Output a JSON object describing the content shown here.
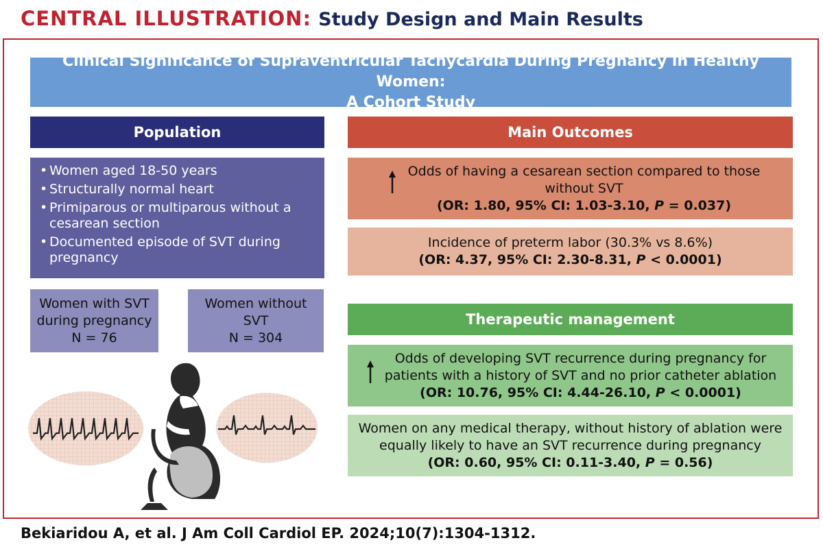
{
  "header": {
    "label": "CENTRAL ILLUSTRATION:",
    "title": "Study Design and Main Results"
  },
  "main_title": {
    "line1": "Clinical Significance of Supraventricular Tachycardia During Pregnancy in Healthy Women:",
    "line2": "A Cohort Study"
  },
  "population": {
    "header": "Population",
    "items": [
      "Women aged 18-50 years",
      "Structurally normal heart",
      "Primiparous or multiparous without a cesarean section",
      "Documented episode of SVT during pregnancy"
    ],
    "groups": [
      {
        "line1": "Women with SVT",
        "line2": "during pregnancy",
        "n": "N = 76"
      },
      {
        "line1": "Women without",
        "line2": "SVT",
        "n": "N = 304"
      }
    ]
  },
  "main_outcomes": {
    "header": "Main Outcomes",
    "box1": {
      "line1": "Odds of having a cesarean section compared to those",
      "line2": "without SVT",
      "stat_pre": "(OR: 1.80, 95% CI: 1.03-3.10, ",
      "stat_p": "P",
      "stat_post": " = 0.037)"
    },
    "box2": {
      "line1": "Incidence of preterm labor (30.3% vs 8.6%)",
      "stat_pre": "(OR: 4.37, 95% CI: 2.30-8.31, ",
      "stat_p": "P",
      "stat_post": " < 0.0001)"
    }
  },
  "therapeutic": {
    "header": "Therapeutic management",
    "box1": {
      "line1": "Odds of developing SVT recurrence during pregnancy for",
      "line2": "patients with a history of SVT and no prior catheter ablation",
      "stat_pre": "(OR: 10.76, 95% CI: 4.44-26.10, ",
      "stat_p": "P",
      "stat_post": " < 0.0001)"
    },
    "box2": {
      "line1": "Women on any medical therapy, without history of ablation were",
      "line2": "equally likely to have an SVT recurrence during pregnancy",
      "stat_pre": "(OR: 0.60, 95% CI: 0.11-3.40, ",
      "stat_p": "P",
      "stat_post": " = 0.56)"
    }
  },
  "citation": "Bekiaridou A, et al. J Am Coll Cardiol EP. 2024;10(7):1304-1312.",
  "colors": {
    "brand_red": "#c0232f",
    "navy": "#2a2e78",
    "outcome_red": "#c94e3b",
    "therapy_green": "#5cab56",
    "title_blue": "#6a9bd4"
  }
}
